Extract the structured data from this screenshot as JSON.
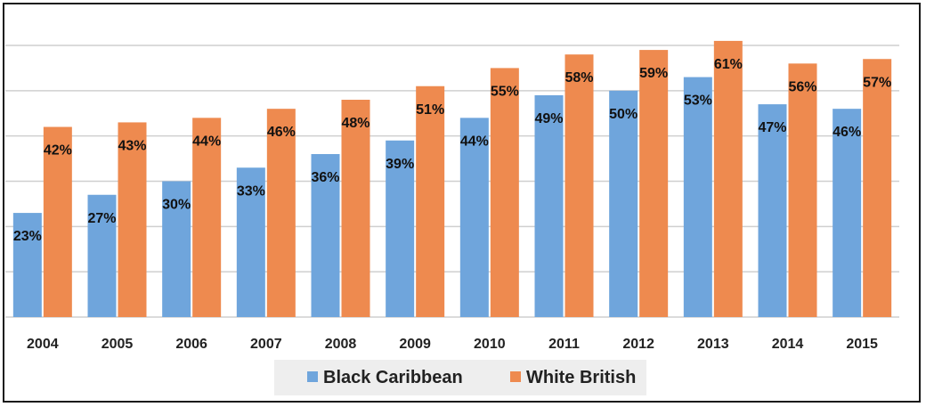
{
  "chart_data": {
    "type": "bar",
    "categories": [
      "2004",
      "2005",
      "2006",
      "2007",
      "2008",
      "2009",
      "2010",
      "2011",
      "2012",
      "2013",
      "2014",
      "2015"
    ],
    "series": [
      {
        "name": "Black Caribbean",
        "color": "#6fa5dc",
        "values": [
          23,
          27,
          30,
          33,
          36,
          39,
          44,
          49,
          50,
          53,
          47,
          46
        ]
      },
      {
        "name": "White British",
        "color": "#ee8a4f",
        "values": [
          42,
          43,
          44,
          46,
          48,
          51,
          55,
          58,
          59,
          61,
          56,
          57
        ]
      }
    ],
    "data_labels": {
      "Black Caribbean": [
        "23%",
        "27%",
        "30%",
        "33%",
        "36%",
        "39%",
        "44%",
        "49%",
        "50%",
        "53%",
        "47%",
        "46%"
      ],
      "White British": [
        "42%",
        "43%",
        "44%",
        "46%",
        "48%",
        "51%",
        "55%",
        "58%",
        "59%",
        "61%",
        "56%",
        "57%"
      ]
    },
    "ylim": [
      0,
      60
    ],
    "grid": true,
    "legend_position": "bottom",
    "title": "",
    "xlabel": "",
    "ylabel": ""
  }
}
